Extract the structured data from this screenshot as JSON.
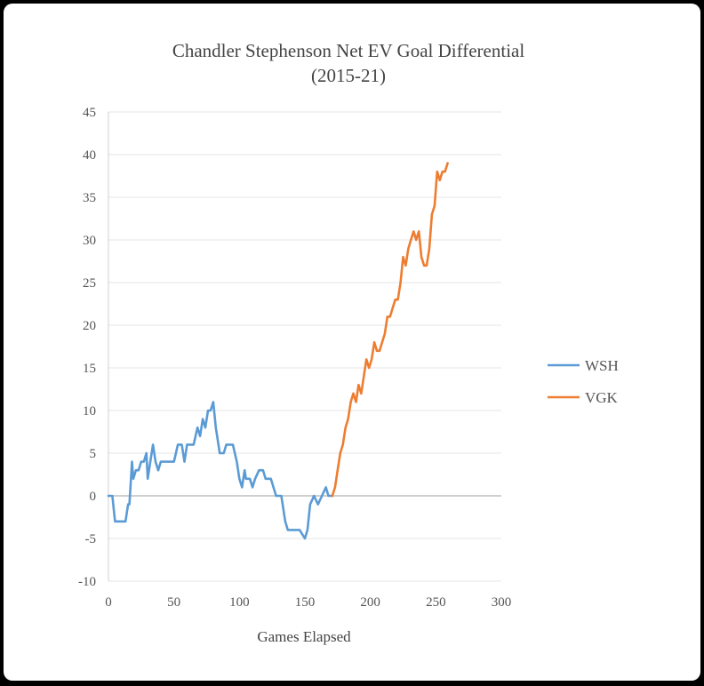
{
  "chart_data": {
    "type": "line",
    "title": "Chandler Stephenson  Net EV Goal Differential",
    "subtitle": "(2015-21)",
    "xlabel": "Games Elapsed",
    "ylabel": "",
    "xlim": [
      0,
      300
    ],
    "ylim": [
      -10,
      45
    ],
    "xticks": [
      0,
      50,
      100,
      150,
      200,
      250,
      300
    ],
    "yticks": [
      -10,
      -5,
      0,
      5,
      10,
      15,
      20,
      25,
      30,
      35,
      40,
      45
    ],
    "grid": "horizontal",
    "legend_position": "right",
    "series": [
      {
        "name": "WSH",
        "color": "#5b9bd5",
        "points": [
          [
            0,
            0
          ],
          [
            3,
            0
          ],
          [
            5,
            -3
          ],
          [
            8,
            -3
          ],
          [
            13,
            -3
          ],
          [
            15,
            -1
          ],
          [
            16,
            -1
          ],
          [
            18,
            4
          ],
          [
            19,
            2
          ],
          [
            21,
            3
          ],
          [
            23,
            3
          ],
          [
            25,
            4
          ],
          [
            27,
            4
          ],
          [
            29,
            5
          ],
          [
            30,
            2
          ],
          [
            32,
            4
          ],
          [
            34,
            6
          ],
          [
            36,
            4
          ],
          [
            38,
            3
          ],
          [
            40,
            4
          ],
          [
            45,
            4
          ],
          [
            50,
            4
          ],
          [
            53,
            6
          ],
          [
            56,
            6
          ],
          [
            58,
            4
          ],
          [
            60,
            6
          ],
          [
            65,
            6
          ],
          [
            68,
            8
          ],
          [
            70,
            7
          ],
          [
            72,
            9
          ],
          [
            74,
            8
          ],
          [
            76,
            10
          ],
          [
            78,
            10
          ],
          [
            80,
            11
          ],
          [
            82,
            8
          ],
          [
            85,
            5
          ],
          [
            88,
            5
          ],
          [
            90,
            6
          ],
          [
            95,
            6
          ],
          [
            98,
            4
          ],
          [
            100,
            2
          ],
          [
            102,
            1
          ],
          [
            104,
            3
          ],
          [
            105,
            2
          ],
          [
            108,
            2
          ],
          [
            110,
            1
          ],
          [
            112,
            2
          ],
          [
            115,
            3
          ],
          [
            118,
            3
          ],
          [
            120,
            2
          ],
          [
            124,
            2
          ],
          [
            128,
            0
          ],
          [
            132,
            0
          ],
          [
            135,
            -3
          ],
          [
            137,
            -4
          ],
          [
            142,
            -4
          ],
          [
            146,
            -4
          ],
          [
            150,
            -5
          ],
          [
            152,
            -4
          ],
          [
            154,
            -1
          ],
          [
            157,
            0
          ],
          [
            160,
            -1
          ],
          [
            163,
            0
          ],
          [
            166,
            1
          ],
          [
            168,
            0
          ],
          [
            171,
            0
          ]
        ]
      },
      {
        "name": "VGK",
        "color": "#ed7d31",
        "points": [
          [
            171,
            0
          ],
          [
            173,
            1
          ],
          [
            175,
            3
          ],
          [
            177,
            5
          ],
          [
            179,
            6
          ],
          [
            181,
            8
          ],
          [
            183,
            9
          ],
          [
            185,
            11
          ],
          [
            187,
            12
          ],
          [
            189,
            11
          ],
          [
            191,
            13
          ],
          [
            193,
            12
          ],
          [
            195,
            14
          ],
          [
            197,
            16
          ],
          [
            199,
            15
          ],
          [
            201,
            16
          ],
          [
            203,
            18
          ],
          [
            205,
            17
          ],
          [
            207,
            17
          ],
          [
            209,
            18
          ],
          [
            211,
            19
          ],
          [
            213,
            21
          ],
          [
            215,
            21
          ],
          [
            217,
            22
          ],
          [
            219,
            23
          ],
          [
            221,
            23
          ],
          [
            223,
            25
          ],
          [
            225,
            28
          ],
          [
            227,
            27
          ],
          [
            229,
            29
          ],
          [
            231,
            30
          ],
          [
            233,
            31
          ],
          [
            235,
            30
          ],
          [
            237,
            31
          ],
          [
            239,
            28
          ],
          [
            241,
            27
          ],
          [
            243,
            27
          ],
          [
            245,
            29
          ],
          [
            247,
            33
          ],
          [
            249,
            34
          ],
          [
            251,
            38
          ],
          [
            253,
            37
          ],
          [
            255,
            38
          ],
          [
            257,
            38
          ],
          [
            259,
            39
          ]
        ]
      }
    ]
  }
}
